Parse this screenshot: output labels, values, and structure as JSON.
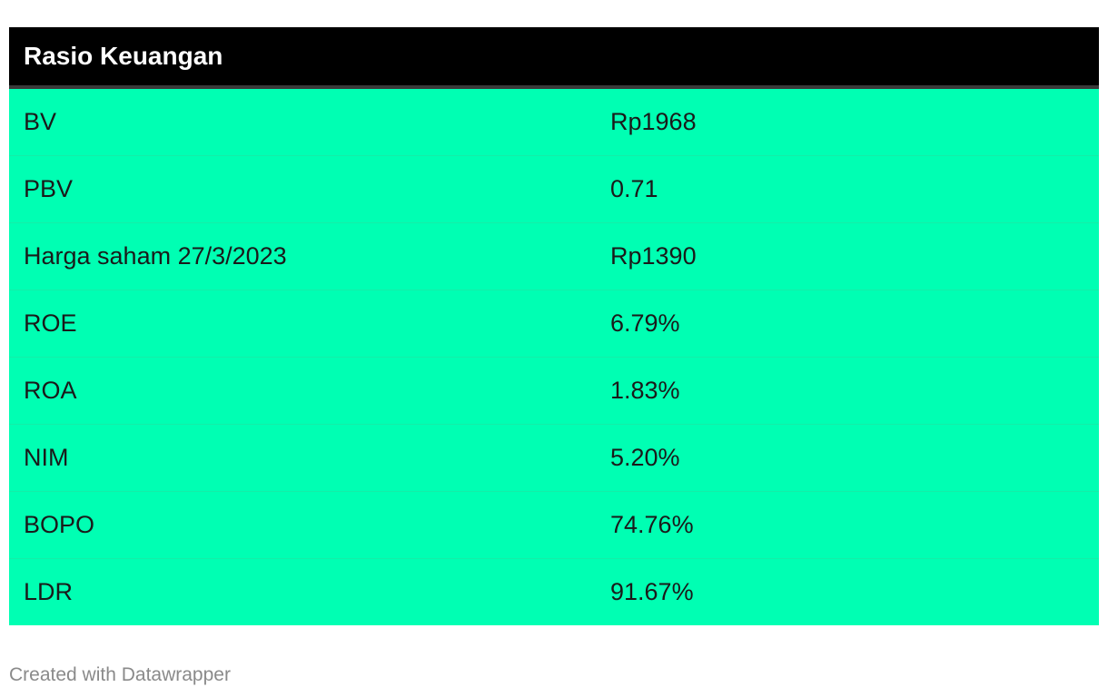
{
  "chart_data": {
    "type": "table",
    "header": "Rasio Keuangan",
    "rows": [
      {
        "label": "BV",
        "value": "Rp1968"
      },
      {
        "label": "PBV",
        "value": "0.71"
      },
      {
        "label": "Harga saham 27/3/2023",
        "value": "Rp1390"
      },
      {
        "label": "ROE",
        "value": "6.79%"
      },
      {
        "label": "ROA",
        "value": "1.83%"
      },
      {
        "label": "NIM",
        "value": "5.20%"
      },
      {
        "label": "BOPO",
        "value": "74.76%"
      },
      {
        "label": "LDR",
        "value": "91.67%"
      }
    ]
  },
  "footer": "Created with Datawrapper",
  "colors": {
    "header_bg": "#000000",
    "row_bg": "#00ffb3",
    "footer_text": "#8a8a8a"
  }
}
